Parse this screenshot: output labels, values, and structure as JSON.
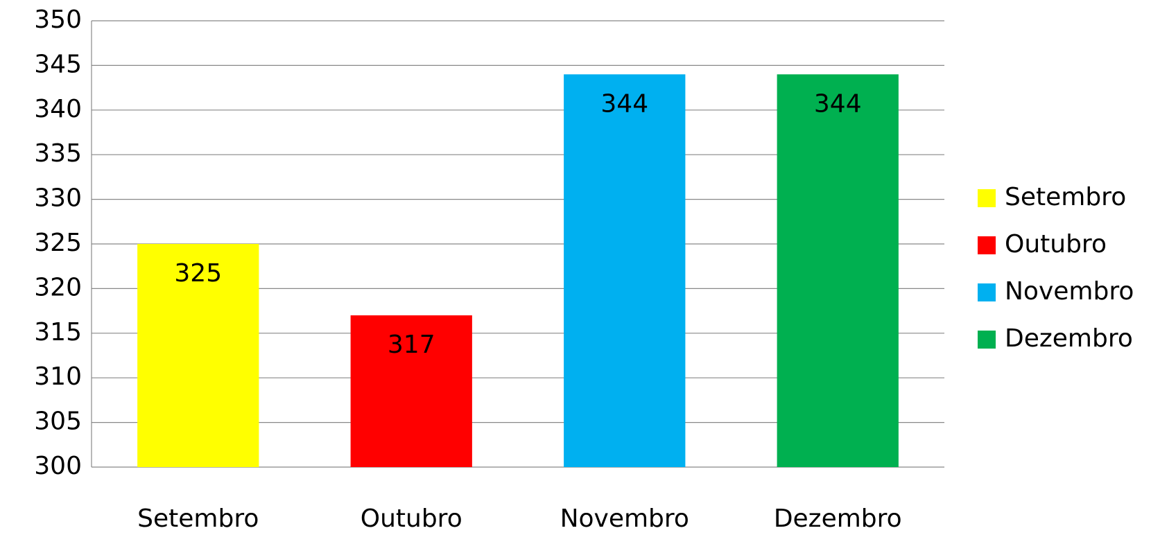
{
  "chart_data": {
    "type": "bar",
    "categories": [
      "Setembro",
      "Outubro",
      "Novembro",
      "Dezembro"
    ],
    "values": [
      325,
      317,
      344,
      344
    ],
    "colors": [
      "#ffff00",
      "#ff0000",
      "#00b0f0",
      "#00b050"
    ],
    "ylim": [
      300,
      350
    ],
    "yticks": [
      300,
      305,
      310,
      315,
      320,
      325,
      330,
      335,
      340,
      345,
      350
    ],
    "grid": true,
    "legend": "right"
  }
}
